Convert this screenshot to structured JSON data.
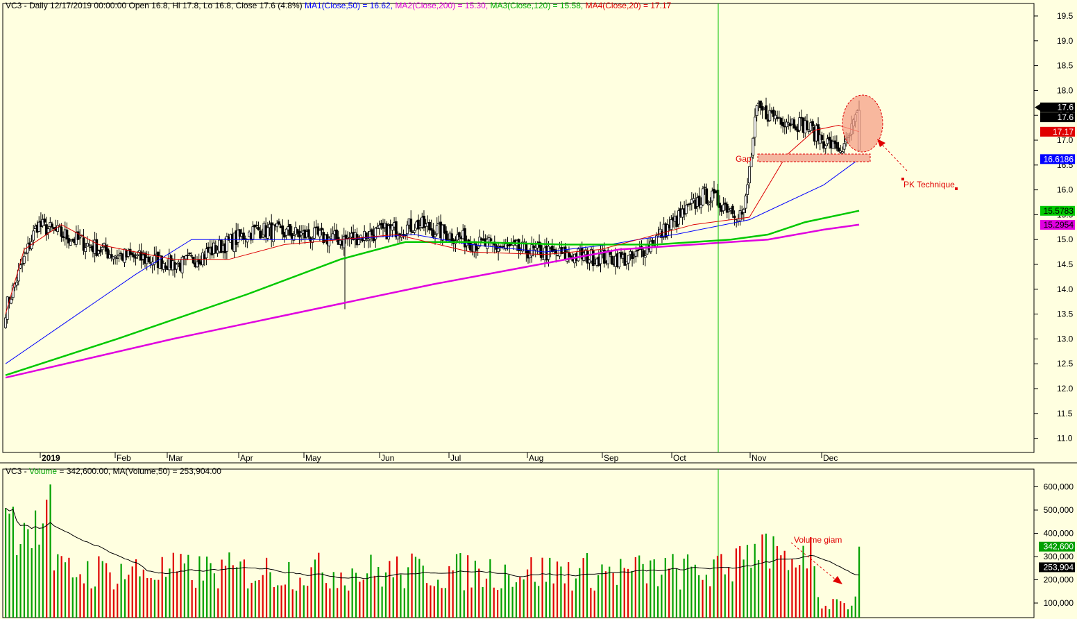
{
  "header": {
    "symbol": "VC3",
    "interval": "Daily",
    "datetime": "12/17/2019 00:00:00",
    "ohlc_text": "Open 16.8, Hi 17.8, Lo 16.8, Close 17.6 (4.8%)",
    "ma1": "MA1(Close,50) = 16.62,",
    "ma2": "MA2(Close,200) = 15.30,",
    "ma3": "MA3(Close,120) = 15.58,",
    "ma4": "MA4(Close,20) = 17.17"
  },
  "volume_header": {
    "symbol": "VC3",
    "label": "Volume",
    "value_text": "= 342,600.00, MA(Volume,50) = 253,904.00"
  },
  "colors": {
    "background": "#ffffe0",
    "ma1": "#0000ff",
    "ma2": "#e000e0",
    "ma3": "#00c800",
    "ma4": "#dd0000",
    "up_volume": "#00a000",
    "down_volume": "#e00000",
    "vline": "#00c000",
    "annotation": "#e00000"
  },
  "annotations": {
    "gap": "Gap",
    "pk": "PK Technique",
    "volume_note": "Volume giam"
  },
  "price_labels": {
    "last_high": "17.6",
    "last_close": "17.6",
    "ma4": "17.17",
    "ma1": "16.6186",
    "ma3": "15.5783",
    "ma2": "15.2954"
  },
  "volume_labels": {
    "last": "342,600",
    "ma": "253,904"
  },
  "chart_data": [
    {
      "type": "candlestick",
      "title": "VC3 - Daily",
      "y_axis": {
        "range": [
          10.6,
          19.8
        ],
        "ticks": [
          "11.0",
          "11.5",
          "12.0",
          "12.5",
          "13.0",
          "13.5",
          "14.0",
          "14.5",
          "15.0",
          "15.5",
          "16.0",
          "16.5",
          "17.0",
          "17.5",
          "18.0",
          "18.5",
          "19.0",
          "19.5"
        ]
      },
      "x_axis": {
        "labels": [
          "2019",
          "Feb",
          "Mar",
          "Apr",
          "May",
          "Jun",
          "Jul",
          "Aug",
          "Sep",
          "Oct",
          "Nov",
          "Dec"
        ]
      },
      "key_points": [
        {
          "date": "2019-01-02",
          "close": 13.6
        },
        {
          "date": "2019-01-15",
          "high": 16.3,
          "close": 15.3
        },
        {
          "date": "2019-02-15",
          "close": 14.7
        },
        {
          "date": "2019-03-15",
          "close": 14.5
        },
        {
          "date": "2019-04-15",
          "close": 15.2
        },
        {
          "date": "2019-05-20",
          "low": 13.6,
          "close": 15.0
        },
        {
          "date": "2019-06-20",
          "close": 15.3
        },
        {
          "date": "2019-07-15",
          "close": 14.9
        },
        {
          "date": "2019-08-15",
          "close": 14.7
        },
        {
          "date": "2019-09-15",
          "close": 14.6
        },
        {
          "date": "2019-10-15",
          "close": 15.9
        },
        {
          "date": "2019-10-31",
          "close": 15.5
        },
        {
          "date": "2019-11-05",
          "high": 18.3,
          "close": 17.6
        },
        {
          "date": "2019-11-25",
          "close": 17.3
        },
        {
          "date": "2019-12-10",
          "close": 16.7
        },
        {
          "date": "2019-12-17",
          "open": 16.8,
          "high": 17.8,
          "low": 16.8,
          "close": 17.6
        }
      ],
      "series": [
        {
          "name": "MA1(Close,50)",
          "last": 16.62,
          "points": [
            [
              0,
              12.5
            ],
            [
              70,
              14.3
            ],
            [
              100,
              15.0
            ],
            [
              180,
              15.0
            ],
            [
              220,
              15.1
            ],
            [
              250,
              14.9
            ],
            [
              290,
              14.75
            ],
            [
              325,
              14.9
            ],
            [
              340,
              15.0
            ],
            [
              360,
              15.1
            ],
            [
              400,
              15.4
            ],
            [
              440,
              16.1
            ],
            [
              460,
              16.62
            ]
          ]
        },
        {
          "name": "MA2(Close,200)",
          "last": 15.3,
          "points": [
            [
              0,
              12.22
            ],
            [
              90,
              13.0
            ],
            [
              230,
              14.1
            ],
            [
              330,
              14.8
            ],
            [
              370,
              14.9
            ],
            [
              390,
              14.95
            ],
            [
              410,
              15.0
            ],
            [
              440,
              15.2
            ],
            [
              460,
              15.3
            ]
          ]
        },
        {
          "name": "MA3(Close,120)",
          "last": 15.58,
          "points": [
            [
              0,
              12.27
            ],
            [
              60,
              13.0
            ],
            [
              130,
              13.9
            ],
            [
              180,
              14.6
            ],
            [
              215,
              14.95
            ],
            [
              250,
              14.95
            ],
            [
              300,
              14.9
            ],
            [
              350,
              14.9
            ],
            [
              390,
              15.0
            ],
            [
              410,
              15.1
            ],
            [
              430,
              15.35
            ],
            [
              460,
              15.58
            ]
          ]
        },
        {
          "name": "MA4(Close,20)",
          "last": 17.17,
          "points": [
            [
              0,
              13.5
            ],
            [
              10,
              14.8
            ],
            [
              30,
              15.3
            ],
            [
              50,
              14.9
            ],
            [
              90,
              14.6
            ],
            [
              120,
              14.6
            ],
            [
              150,
              14.9
            ],
            [
              180,
              15.0
            ],
            [
              210,
              15.1
            ],
            [
              250,
              14.75
            ],
            [
              290,
              14.7
            ],
            [
              320,
              14.8
            ],
            [
              340,
              15.0
            ],
            [
              370,
              15.3
            ],
            [
              390,
              15.4
            ],
            [
              400,
              15.45
            ],
            [
              420,
              16.7
            ],
            [
              435,
              17.2
            ],
            [
              448,
              17.3
            ],
            [
              460,
              17.17
            ]
          ]
        }
      ]
    },
    {
      "type": "bar",
      "title": "VC3 - Volume",
      "y_axis": {
        "ticks": [
          "100,000",
          "200,000",
          "300,000",
          "400,000",
          "500,000",
          "600,000"
        ]
      },
      "last_volume": 342600,
      "ma50_last": 253904
    }
  ]
}
